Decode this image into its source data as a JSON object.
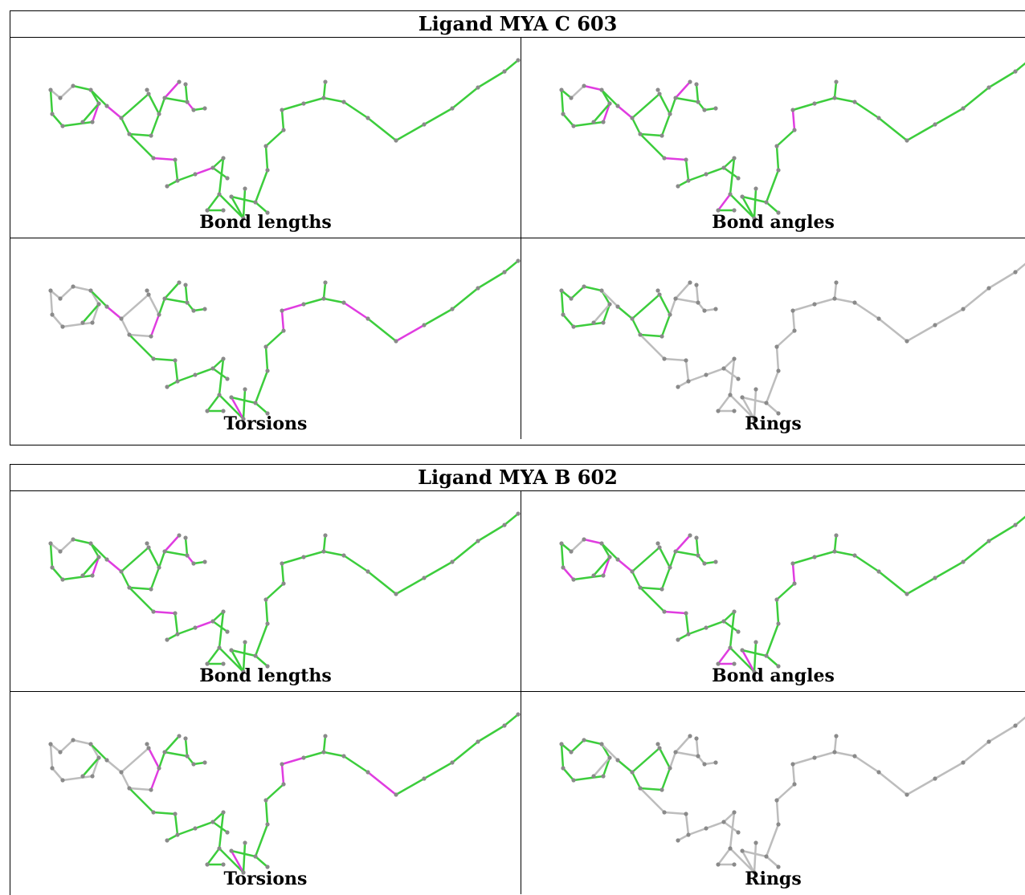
{
  "tables": [
    {
      "title": "Ligand MYA C 603",
      "panels": [
        {
          "label": "Bond lengths",
          "magenta": [
            [
              4,
              5
            ],
            [
              9,
              10
            ],
            [
              16,
              17
            ],
            [
              18,
              19
            ],
            [
              22,
              23
            ],
            [
              26,
              27
            ]
          ],
          "gray": [
            [
              0,
              1
            ],
            [
              1,
              2
            ]
          ]
        },
        {
          "label": "Bond angles",
          "magenta": [
            [
              4,
              5
            ],
            [
              2,
              3
            ],
            [
              9,
              10
            ],
            [
              16,
              17
            ],
            [
              22,
              23
            ],
            [
              30,
              31
            ],
            [
              40,
              41
            ]
          ],
          "gray": [
            [
              1,
              2
            ]
          ]
        },
        {
          "label": "Torsions",
          "magenta": [
            [
              9,
              10
            ],
            [
              12,
              13
            ],
            [
              14,
              15
            ],
            [
              33,
              34
            ],
            [
              40,
              41
            ],
            [
              41,
              42
            ],
            [
              45,
              46
            ],
            [
              47,
              48
            ]
          ],
          "gray": "ring"
        },
        {
          "label": "Rings",
          "magenta": [],
          "gray": "all-but-ring"
        }
      ]
    },
    {
      "title": "Ligand MYA B 602",
      "panels": [
        {
          "label": "Bond lengths",
          "magenta": [
            [
              4,
              5
            ],
            [
              9,
              10
            ],
            [
              16,
              17
            ],
            [
              18,
              19
            ],
            [
              22,
              23
            ],
            [
              26,
              27
            ]
          ],
          "gray": [
            [
              0,
              1
            ],
            [
              1,
              2
            ]
          ]
        },
        {
          "label": "Bond angles",
          "magenta": [
            [
              4,
              5
            ],
            [
              2,
              3
            ],
            [
              6,
              7
            ],
            [
              9,
              10
            ],
            [
              16,
              17
            ],
            [
              22,
              23
            ],
            [
              30,
              31
            ],
            [
              31,
              32
            ],
            [
              33,
              34
            ],
            [
              40,
              41
            ]
          ],
          "gray": [
            [
              1,
              2
            ]
          ]
        },
        {
          "label": "Torsions",
          "magenta": [
            [
              8,
              9
            ],
            [
              12,
              13
            ],
            [
              13,
              14
            ],
            [
              14,
              15
            ],
            [
              33,
              34
            ],
            [
              40,
              41
            ],
            [
              41,
              42
            ],
            [
              44,
              45
            ],
            [
              46,
              47
            ]
          ],
          "gray": "ring"
        },
        {
          "label": "Rings",
          "magenta": [],
          "gray": "all-but-ring"
        }
      ]
    }
  ],
  "colors": {
    "green": "#3ccd3c",
    "magenta": "#e03ce0",
    "gray": "#bdbdbd",
    "atom": "#8a8a8a"
  }
}
